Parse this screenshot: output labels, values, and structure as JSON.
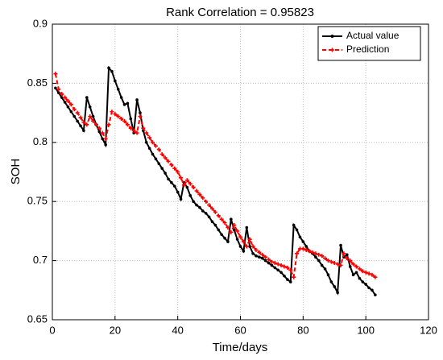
{
  "chart_data": {
    "type": "line",
    "title": "Rank Correlation = 0.95823",
    "xlabel": "Time/days",
    "ylabel": "SOH",
    "x": [
      1,
      2,
      3,
      4,
      5,
      6,
      7,
      8,
      9,
      10,
      11,
      12,
      13,
      14,
      15,
      16,
      17,
      18,
      19,
      20,
      21,
      22,
      23,
      24,
      25,
      26,
      27,
      28,
      29,
      30,
      31,
      32,
      33,
      34,
      35,
      36,
      37,
      38,
      39,
      40,
      41,
      42,
      43,
      44,
      45,
      46,
      47,
      48,
      49,
      50,
      51,
      52,
      53,
      54,
      55,
      56,
      57,
      58,
      59,
      60,
      61,
      62,
      63,
      64,
      65,
      66,
      67,
      68,
      69,
      70,
      71,
      72,
      73,
      74,
      75,
      76,
      77,
      78,
      79,
      80,
      81,
      82,
      83,
      84,
      85,
      86,
      87,
      88,
      89,
      90,
      91,
      92,
      93,
      94,
      95,
      96,
      97,
      98,
      99,
      100,
      101,
      102,
      103
    ],
    "series": [
      {
        "name": "Actual value",
        "color": "#000000",
        "dashed": false,
        "marker": "dot",
        "values": [
          0.846,
          0.842,
          0.838,
          0.834,
          0.83,
          0.826,
          0.822,
          0.818,
          0.814,
          0.81,
          0.838,
          0.83,
          0.822,
          0.815,
          0.809,
          0.803,
          0.798,
          0.863,
          0.86,
          0.852,
          0.845,
          0.838,
          0.832,
          0.833,
          0.82,
          0.808,
          0.836,
          0.825,
          0.81,
          0.8,
          0.795,
          0.79,
          0.786,
          0.782,
          0.778,
          0.774,
          0.769,
          0.766,
          0.763,
          0.758,
          0.752,
          0.766,
          0.762,
          0.755,
          0.75,
          0.747,
          0.745,
          0.742,
          0.74,
          0.737,
          0.733,
          0.73,
          0.726,
          0.722,
          0.719,
          0.716,
          0.735,
          0.726,
          0.718,
          0.712,
          0.708,
          0.728,
          0.712,
          0.706,
          0.704,
          0.703,
          0.702,
          0.7,
          0.698,
          0.696,
          0.694,
          0.692,
          0.69,
          0.687,
          0.684,
          0.682,
          0.73,
          0.726,
          0.72,
          0.716,
          0.712,
          0.708,
          0.706,
          0.703,
          0.7,
          0.696,
          0.693,
          0.688,
          0.682,
          0.678,
          0.673,
          0.713,
          0.703,
          0.705,
          0.695,
          0.688,
          0.69,
          0.685,
          0.682,
          0.68,
          0.677,
          0.675,
          0.671
        ]
      },
      {
        "name": "Prediction",
        "color": "#ff0000",
        "dashed": true,
        "marker": "plus",
        "values": [
          0.858,
          0.845,
          0.841,
          0.838,
          0.835,
          0.832,
          0.828,
          0.825,
          0.821,
          0.817,
          0.815,
          0.822,
          0.818,
          0.815,
          0.812,
          0.808,
          0.803,
          0.815,
          0.826,
          0.824,
          0.822,
          0.82,
          0.818,
          0.815,
          0.812,
          0.81,
          0.808,
          0.822,
          0.812,
          0.808,
          0.804,
          0.8,
          0.797,
          0.794,
          0.79,
          0.787,
          0.784,
          0.781,
          0.778,
          0.775,
          0.77,
          0.764,
          0.768,
          0.765,
          0.762,
          0.759,
          0.756,
          0.753,
          0.75,
          0.747,
          0.744,
          0.741,
          0.738,
          0.735,
          0.732,
          0.728,
          0.724,
          0.73,
          0.725,
          0.72,
          0.716,
          0.712,
          0.718,
          0.712,
          0.709,
          0.707,
          0.705,
          0.703,
          0.701,
          0.699,
          0.698,
          0.697,
          0.696,
          0.695,
          0.694,
          0.692,
          0.686,
          0.706,
          0.71,
          0.71,
          0.709,
          0.708,
          0.707,
          0.706,
          0.705,
          0.704,
          0.702,
          0.7,
          0.699,
          0.698,
          0.697,
          0.696,
          0.706,
          0.702,
          0.7,
          0.697,
          0.695,
          0.693,
          0.691,
          0.69,
          0.689,
          0.688,
          0.686
        ]
      }
    ],
    "xlim": [
      0,
      120
    ],
    "xticks": [
      0,
      20,
      40,
      60,
      80,
      100,
      120
    ],
    "ylim": [
      0.65,
      0.9
    ],
    "yticks": [
      0.65,
      0.7,
      0.75,
      0.8,
      0.85,
      0.9
    ],
    "grid": true,
    "legend": "top-right"
  }
}
